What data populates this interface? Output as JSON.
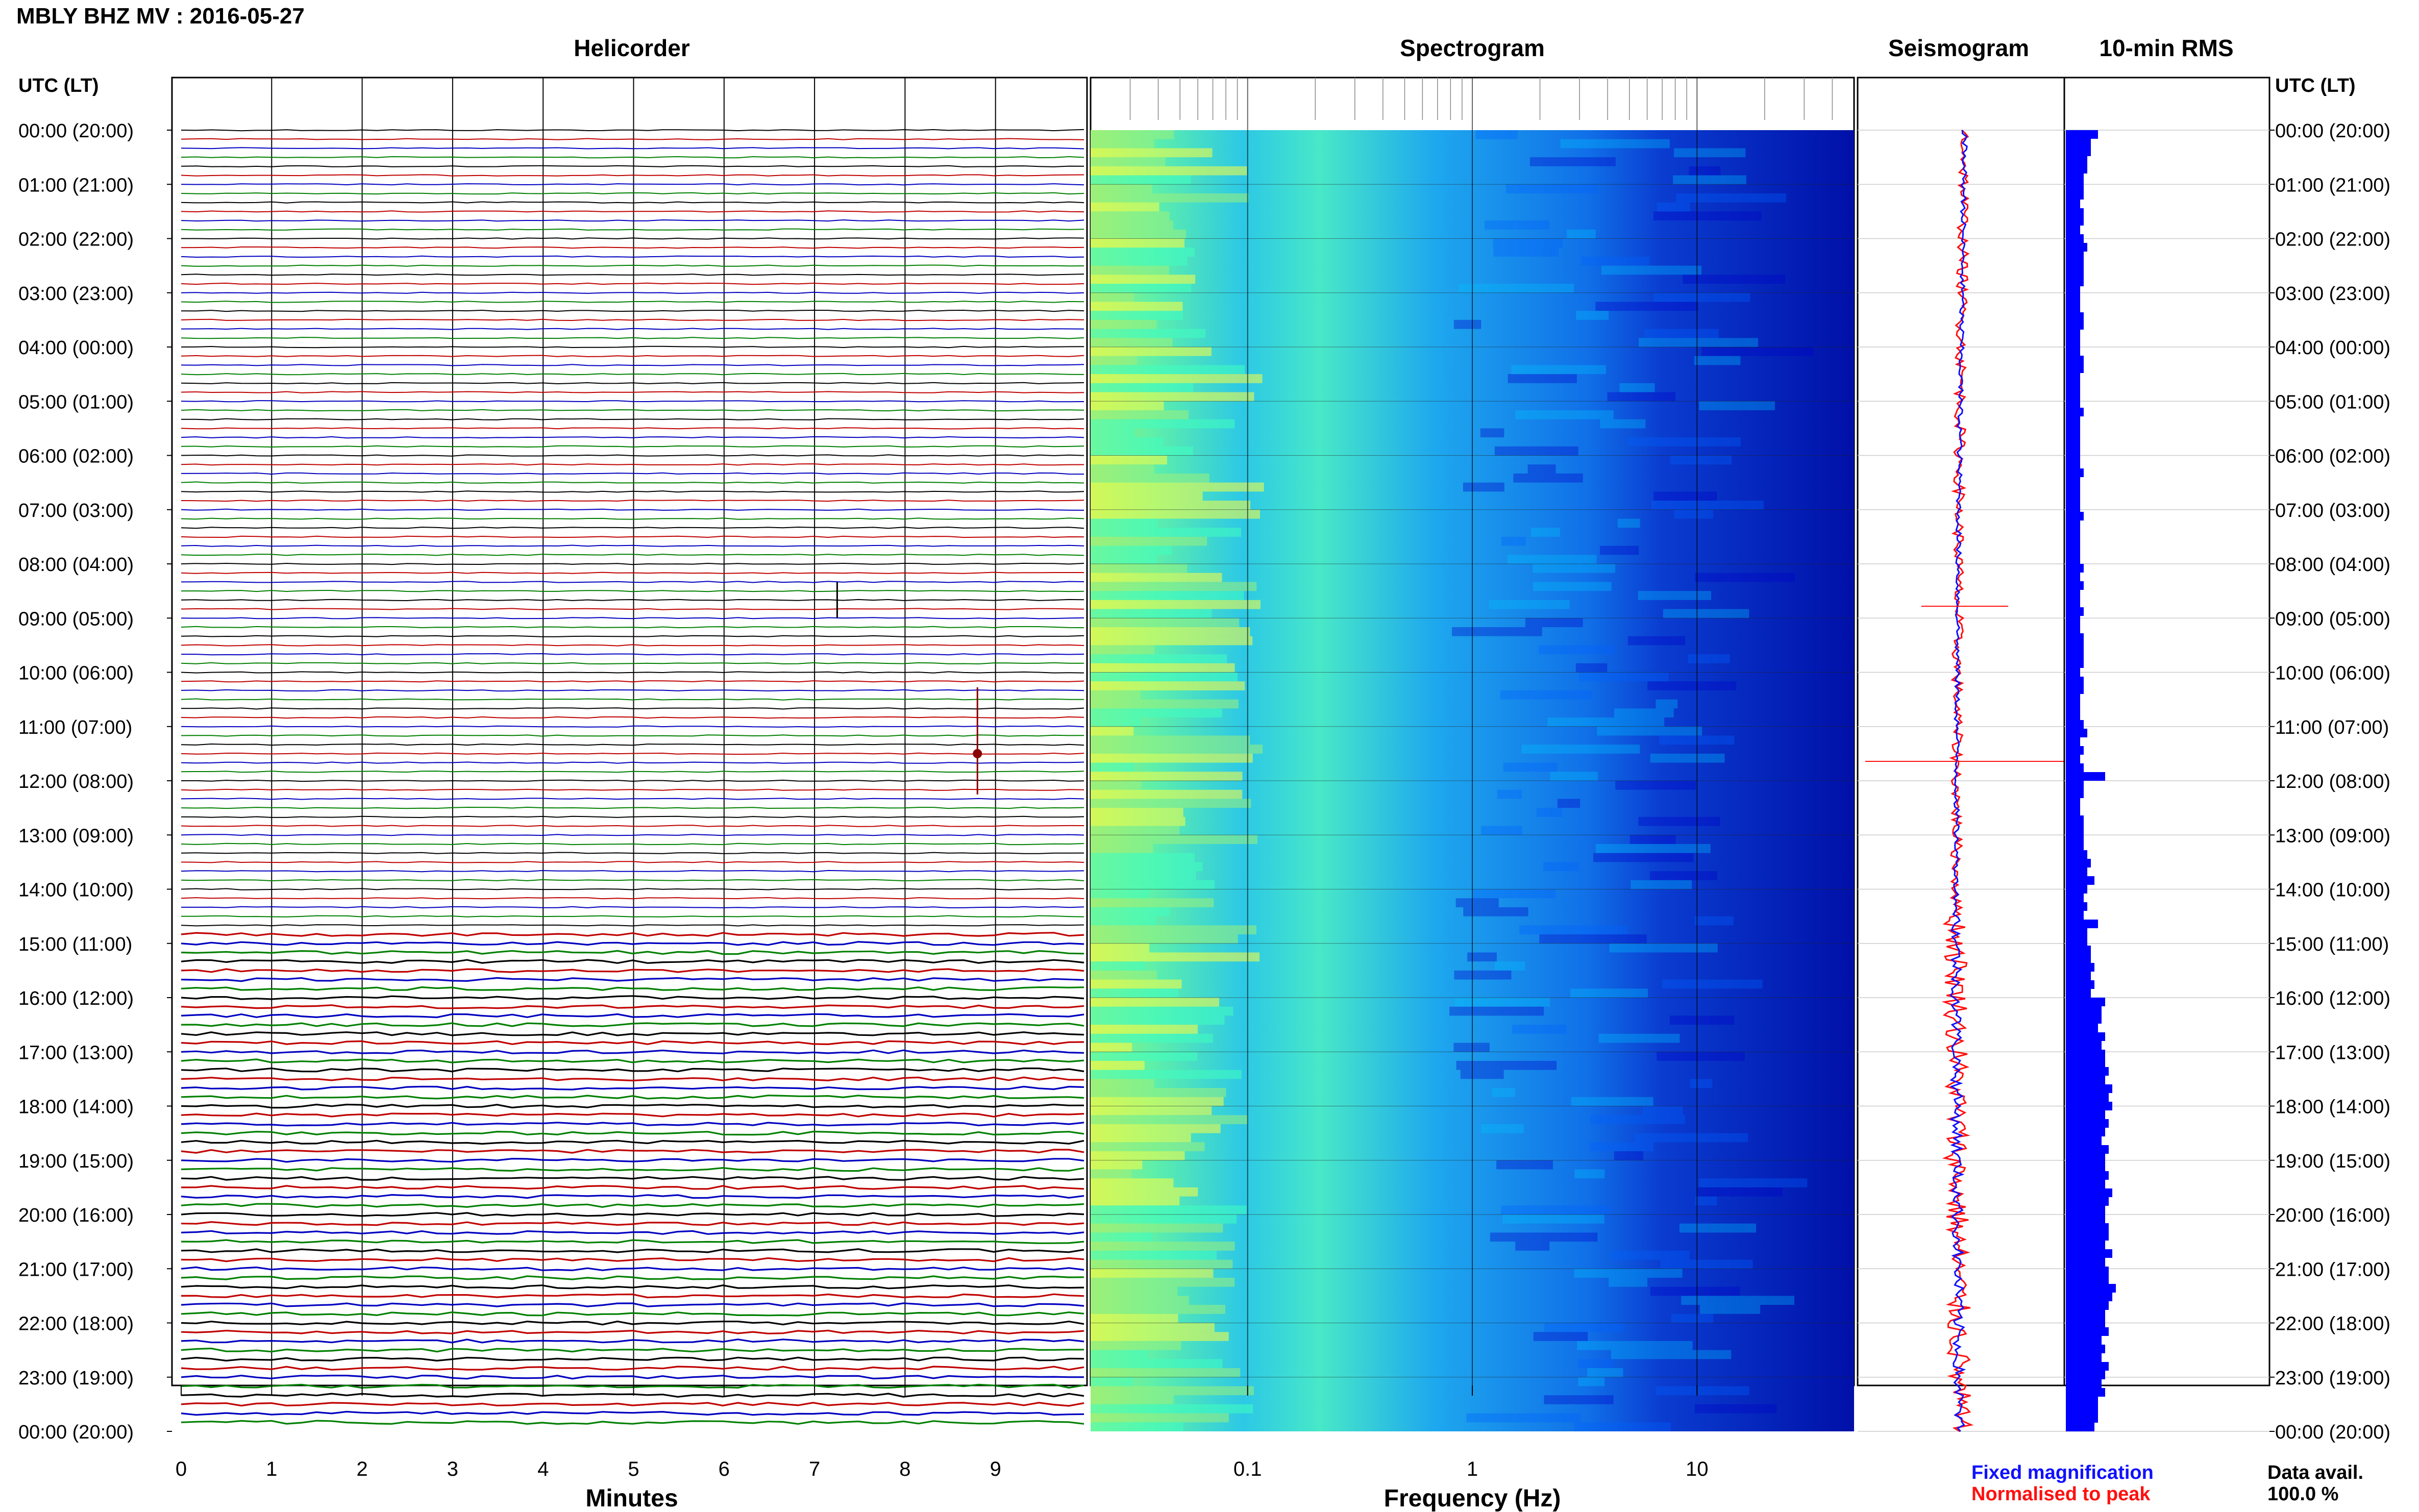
{
  "header": {
    "title": "MBLY BHZ MV : 2016-05-27",
    "utc_lt_left": "UTC (LT)",
    "utc_lt_right": "UTC (LT)"
  },
  "panels": {
    "helicorder": "Helicorder",
    "spectrogram": "Spectrogram",
    "seismogram": "Seismogram",
    "rms": "10-min RMS"
  },
  "legend": {
    "fixed": "Fixed magnification",
    "normalised": "Normalised to peak",
    "fixed_color": "#1010ff",
    "normalised_color": "#ff1010"
  },
  "data_avail": {
    "label": "Data avail.",
    "value": "100.0 %"
  },
  "chart_data": [
    {
      "type": "line",
      "panel": "helicorder",
      "xlabel": "Minutes",
      "x_ticks": [
        "0",
        "1",
        "2",
        "3",
        "4",
        "5",
        "6",
        "7",
        "8",
        "9"
      ],
      "xlim": [
        0,
        10
      ],
      "trace_colors": [
        "#000000",
        "#c00000",
        "#0000c0",
        "#008000"
      ],
      "row_labels": [
        "00:00 (20:00)",
        "01:00 (21:00)",
        "02:00 (22:00)",
        "03:00 (23:00)",
        "04:00 (00:00)",
        "05:00 (01:00)",
        "06:00 (02:00)",
        "07:00 (03:00)",
        "08:00 (04:00)",
        "09:00 (05:00)",
        "10:00 (06:00)",
        "11:00 (07:00)",
        "12:00 (08:00)",
        "13:00 (09:00)",
        "14:00 (10:00)",
        "15:00 (11:00)",
        "16:00 (12:00)",
        "17:00 (13:00)",
        "18:00 (14:00)",
        "19:00 (15:00)",
        "20:00 (16:00)",
        "21:00 (17:00)",
        "22:00 (18:00)",
        "23:00 (19:00)",
        "00:00 (20:00)"
      ]
    },
    {
      "type": "heatmap",
      "panel": "spectrogram",
      "xlabel": "Frequency (Hz)",
      "x_scale": "log",
      "x_ticks": [
        "0.1",
        "1",
        "10"
      ],
      "xlim": [
        0.02,
        50
      ],
      "colors": [
        "#ffff40",
        "#40ffc0",
        "#00c0ff",
        "#0060ff",
        "#0000c8"
      ]
    },
    {
      "type": "line",
      "panel": "seismogram",
      "series": [
        {
          "name": "Fixed magnification",
          "color": "#1010ff"
        },
        {
          "name": "Normalised to peak",
          "color": "#ff1010"
        }
      ]
    },
    {
      "type": "bar",
      "panel": "rms",
      "orientation": "horizontal",
      "color": "#0000ff",
      "values": [
        9,
        7,
        7,
        6,
        6,
        5,
        5,
        5,
        4,
        5,
        5,
        4,
        5,
        6,
        5,
        5,
        5,
        5,
        4,
        4,
        4,
        5,
        5,
        4,
        4,
        4,
        5,
        5,
        4,
        4,
        4,
        4,
        5,
        4,
        4,
        4,
        4,
        4,
        4,
        5,
        4,
        4,
        4,
        4,
        5,
        4,
        4,
        4,
        4,
        4,
        5,
        4,
        5,
        4,
        4,
        5,
        4,
        4,
        5,
        5,
        5,
        5,
        4,
        5,
        5,
        4,
        4,
        4,
        5,
        6,
        4,
        5,
        4,
        5,
        11,
        5,
        5,
        4,
        4,
        5,
        5,
        5,
        5,
        6,
        7,
        6,
        8,
        6,
        5,
        6,
        5,
        9,
        6,
        6,
        7,
        7,
        8,
        7,
        8,
        7,
        11,
        10,
        10,
        9,
        11,
        10,
        11,
        11,
        12,
        11,
        13,
        12,
        13,
        11,
        12,
        11,
        10,
        12,
        11,
        11,
        12,
        11,
        13,
        12,
        11,
        11,
        12,
        12,
        11,
        13,
        11,
        12,
        12,
        14,
        13,
        12,
        11,
        11,
        12,
        10,
        11,
        10,
        12,
        11,
        10,
        11,
        9,
        9,
        9,
        8
      ]
    }
  ]
}
